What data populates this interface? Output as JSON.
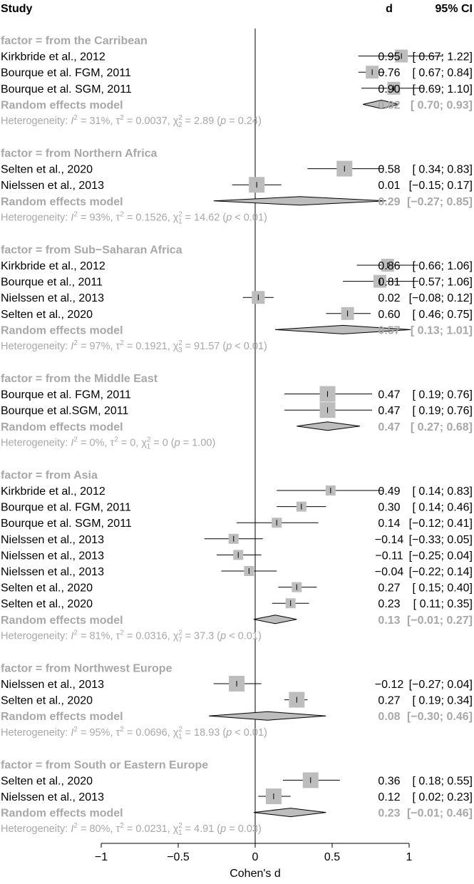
{
  "chart_data": {
    "type": "forest",
    "headers": {
      "study": "Study",
      "effect": "d",
      "ci": "95% CI"
    },
    "xlabel": "Cohen's d",
    "xlim": [
      -1,
      1
    ],
    "xticks": [
      "−1",
      "−0.5",
      "0",
      "0.5",
      "1"
    ],
    "xtick_values": [
      -1,
      -0.5,
      0,
      0.5,
      1
    ],
    "colors": {
      "box": "#bdbdbd",
      "label_grey": "#a8a8a8",
      "diamond_fill": "#bdbdbd",
      "line": "#000000"
    },
    "groups": [
      {
        "title": "factor = from the Carribean",
        "studies": [
          {
            "label": "Kirkbride et al., 2012",
            "d": 0.95,
            "lo": 0.67,
            "hi": 1.22,
            "d_text": "0.95",
            "ci_text": "[ 0.67; 1.22]",
            "w": 3
          },
          {
            "label": "Bourque et al. FGM, 2011",
            "d": 0.76,
            "lo": 0.67,
            "hi": 0.84,
            "d_text": "0.76",
            "ci_text": "[ 0.67; 0.84]",
            "w": 3
          },
          {
            "label": "Bourque et al. SGM, 2011",
            "d": 0.9,
            "lo": 0.69,
            "hi": 1.1,
            "d_text": "0.90",
            "ci_text": "[ 0.69; 1.10]",
            "w": 3
          }
        ],
        "re": {
          "label": "Random effects model",
          "d": 0.82,
          "lo": 0.7,
          "hi": 0.93,
          "d_text": "0.82",
          "ci_text": "[ 0.70; 0.93]"
        },
        "het": {
          "i2": "31%",
          "tau2": "0.0037",
          "df": "2",
          "chi2": "2.89",
          "p": "= 0.24"
        }
      },
      {
        "title": "factor = from Northern Africa",
        "studies": [
          {
            "label": "Selten et al., 2020",
            "d": 0.58,
            "lo": 0.34,
            "hi": 0.83,
            "d_text": "0.58",
            "ci_text": "[ 0.34; 0.83]",
            "w": 4
          },
          {
            "label": "Nielssen et al., 2013",
            "d": 0.01,
            "lo": -0.15,
            "hi": 0.17,
            "d_text": "0.01",
            "ci_text": "[−0.15; 0.17]",
            "w": 4
          }
        ],
        "re": {
          "label": "Random effects model",
          "d": 0.29,
          "lo": -0.27,
          "hi": 0.85,
          "d_text": "0.29",
          "ci_text": "[−0.27; 0.85]"
        },
        "het": {
          "i2": "93%",
          "tau2": "0.1526",
          "df": "1",
          "chi2": "14.62",
          "p": "< 0.01"
        }
      },
      {
        "title": "factor = from Sub−Saharan Africa",
        "studies": [
          {
            "label": "Kirkbride et al., 2012",
            "d": 0.86,
            "lo": 0.66,
            "hi": 1.06,
            "d_text": "0.86",
            "ci_text": "[ 0.66; 1.06]",
            "w": 3
          },
          {
            "label": "Bourque et al., 2011",
            "d": 0.81,
            "lo": 0.57,
            "hi": 1.06,
            "d_text": "0.81",
            "ci_text": "[ 0.57; 1.06]",
            "w": 3
          },
          {
            "label": "Nielssen et al., 2013",
            "d": 0.02,
            "lo": -0.08,
            "hi": 0.12,
            "d_text": "0.02",
            "ci_text": "[−0.08; 0.12]",
            "w": 3
          },
          {
            "label": "Selten et al., 2020",
            "d": 0.6,
            "lo": 0.46,
            "hi": 0.75,
            "d_text": "0.60",
            "ci_text": "[ 0.46; 0.75]",
            "w": 3
          }
        ],
        "re": {
          "label": "Random effects model",
          "d": 0.57,
          "lo": 0.13,
          "hi": 1.01,
          "d_text": "0.57",
          "ci_text": "[ 0.13; 1.01]"
        },
        "het": {
          "i2": "97%",
          "tau2": "0.1921",
          "df": "3",
          "chi2": "91.57",
          "p": "< 0.01"
        }
      },
      {
        "title": "factor = from the Middle East",
        "studies": [
          {
            "label": "Bourque et al. FGM, 2011",
            "d": 0.47,
            "lo": 0.19,
            "hi": 0.76,
            "d_text": "0.47",
            "ci_text": "[ 0.19; 0.76]",
            "w": 4
          },
          {
            "label": "Bourque et al.SGM, 2011",
            "d": 0.47,
            "lo": 0.19,
            "hi": 0.76,
            "d_text": "0.47",
            "ci_text": "[ 0.19; 0.76]",
            "w": 4
          }
        ],
        "re": {
          "label": "Random effects model",
          "d": 0.47,
          "lo": 0.27,
          "hi": 0.68,
          "d_text": "0.47",
          "ci_text": "[ 0.27; 0.68]"
        },
        "het": {
          "i2": "0%",
          "tau2": "0",
          "df": "1",
          "chi2": "0",
          "p": "= 1.00"
        }
      },
      {
        "title": "factor = from Asia",
        "studies": [
          {
            "label": "Kirkbride et al., 2012",
            "d": 0.49,
            "lo": 0.14,
            "hi": 0.83,
            "d_text": "0.49",
            "ci_text": "[ 0.14; 0.83]",
            "w": 2
          },
          {
            "label": "Bourque et al. FGM, 2011",
            "d": 0.3,
            "lo": 0.14,
            "hi": 0.46,
            "d_text": "0.30",
            "ci_text": "[ 0.14; 0.46]",
            "w": 2
          },
          {
            "label": "Bourque et al. SGM, 2011",
            "d": 0.14,
            "lo": -0.12,
            "hi": 0.41,
            "d_text": "0.14",
            "ci_text": "[−0.12; 0.41]",
            "w": 2
          },
          {
            "label": "Nielssen et al., 2013",
            "d": -0.14,
            "lo": -0.33,
            "hi": 0.05,
            "d_text": "−0.14",
            "ci_text": "[−0.33; 0.05]",
            "w": 2
          },
          {
            "label": "Nielssen et al., 2013",
            "d": -0.11,
            "lo": -0.25,
            "hi": 0.04,
            "d_text": "−0.11",
            "ci_text": "[−0.25; 0.04]",
            "w": 2
          },
          {
            "label": "Nielssen et al., 2013",
            "d": -0.04,
            "lo": -0.22,
            "hi": 0.14,
            "d_text": "−0.04",
            "ci_text": "[−0.22; 0.14]",
            "w": 2
          },
          {
            "label": "Selten et al., 2020",
            "d": 0.27,
            "lo": 0.15,
            "hi": 0.4,
            "d_text": "0.27",
            "ci_text": "[ 0.15; 0.40]",
            "w": 2
          },
          {
            "label": "Selten et al., 2020",
            "d": 0.23,
            "lo": 0.11,
            "hi": 0.35,
            "d_text": "0.23",
            "ci_text": "[ 0.11; 0.35]",
            "w": 2
          }
        ],
        "re": {
          "label": "Random effects model",
          "d": 0.13,
          "lo": -0.01,
          "hi": 0.27,
          "d_text": "0.13",
          "ci_text": "[−0.01; 0.27]"
        },
        "het": {
          "i2": "81%",
          "tau2": "0.0316",
          "df": "7",
          "chi2": "37.3",
          "p": "< 0.01"
        }
      },
      {
        "title": "factor = from Northwest Europe",
        "studies": [
          {
            "label": "Nielssen et al., 2013",
            "d": -0.12,
            "lo": -0.27,
            "hi": 0.04,
            "d_text": "−0.12",
            "ci_text": "[−0.27; 0.04]",
            "w": 4
          },
          {
            "label": "Selten et al., 2020",
            "d": 0.27,
            "lo": 0.19,
            "hi": 0.34,
            "d_text": "0.27",
            "ci_text": "[ 0.19; 0.34]",
            "w": 4
          }
        ],
        "re": {
          "label": "Random effects model",
          "d": 0.08,
          "lo": -0.3,
          "hi": 0.46,
          "d_text": "0.08",
          "ci_text": "[−0.30; 0.46]"
        },
        "het": {
          "i2": "95%",
          "tau2": "0.0696",
          "df": "1",
          "chi2": "18.93",
          "p": "< 0.01"
        }
      },
      {
        "title": "factor = from South or Eastern Europe",
        "studies": [
          {
            "label": "Selten et al., 2020",
            "d": 0.36,
            "lo": 0.18,
            "hi": 0.55,
            "d_text": "0.36",
            "ci_text": "[ 0.18; 0.55]",
            "w": 4
          },
          {
            "label": "Nielssen et al., 2013",
            "d": 0.12,
            "lo": 0.02,
            "hi": 0.23,
            "d_text": "0.12",
            "ci_text": "[ 0.02; 0.23]",
            "w": 4
          }
        ],
        "re": {
          "label": "Random effects model",
          "d": 0.23,
          "lo": -0.01,
          "hi": 0.46,
          "d_text": "0.23",
          "ci_text": "[−0.01; 0.46]"
        },
        "het": {
          "i2": "80%",
          "tau2": "0.0231",
          "df": "1",
          "chi2": "4.91",
          "p": "= 0.03"
        }
      }
    ]
  }
}
